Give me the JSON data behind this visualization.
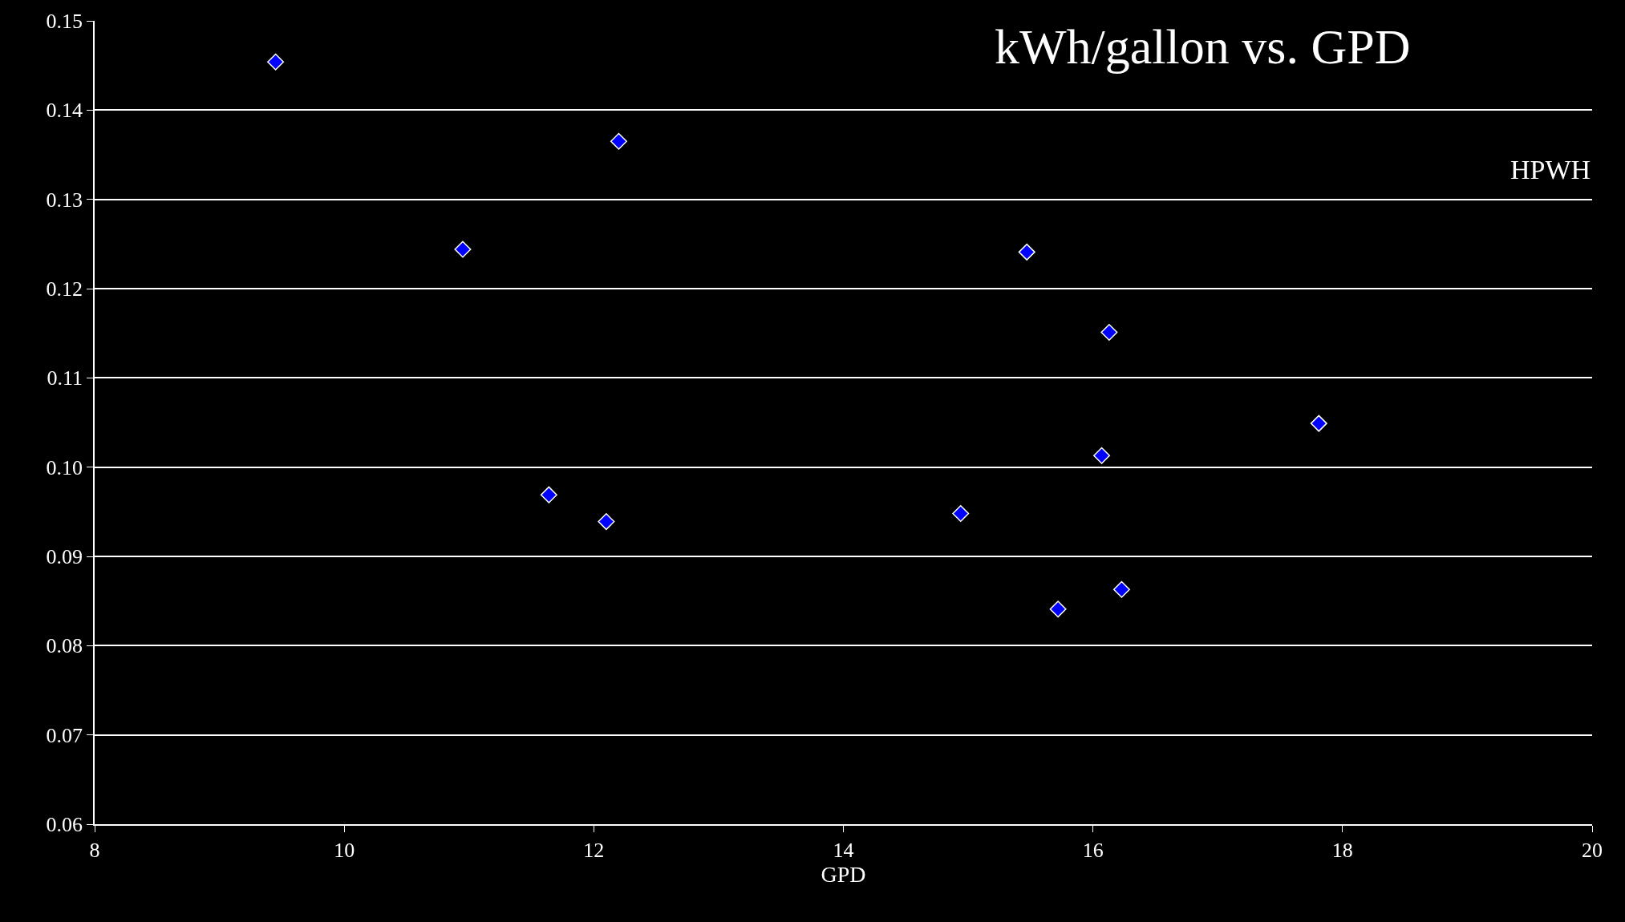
{
  "chart_data": {
    "type": "scatter",
    "title": "kWh/gallon vs. GPD",
    "xlabel": "GPD",
    "annotations": [
      "HPWH"
    ],
    "x": [
      9.45,
      12.2,
      10.95,
      15.47,
      16.13,
      17.81,
      16.07,
      11.64,
      12.1,
      14.94,
      15.72,
      16.23
    ],
    "series": [
      {
        "color": "#0000ff",
        "values": [
          0.1454,
          0.1365,
          0.1244,
          0.1241,
          0.1151,
          0.1049,
          0.1013,
          0.0969,
          0.0939,
          0.0948,
          0.0841,
          0.0863
        ]
      }
    ],
    "marker": "diamond",
    "grid": "y",
    "legend": false,
    "xlim": [
      8,
      20
    ],
    "xticks": [
      8,
      10,
      12,
      14,
      16,
      18,
      20
    ],
    "ylim": [
      0.06,
      0.15
    ],
    "yticks": [
      {
        "value": 0.06,
        "label": "0.06"
      },
      {
        "value": 0.07,
        "label": "0.07"
      },
      {
        "value": 0.08,
        "label": "0.08"
      },
      {
        "value": 0.09,
        "label": "0.09"
      },
      {
        "value": 0.1,
        "label": "0.10"
      },
      {
        "value": 0.11,
        "label": "0.11"
      },
      {
        "value": 0.12,
        "label": "0.12"
      },
      {
        "value": 0.13,
        "label": "0.13"
      },
      {
        "value": 0.14,
        "label": "0.14"
      },
      {
        "value": 0.15,
        "label": "0.15"
      }
    ]
  }
}
